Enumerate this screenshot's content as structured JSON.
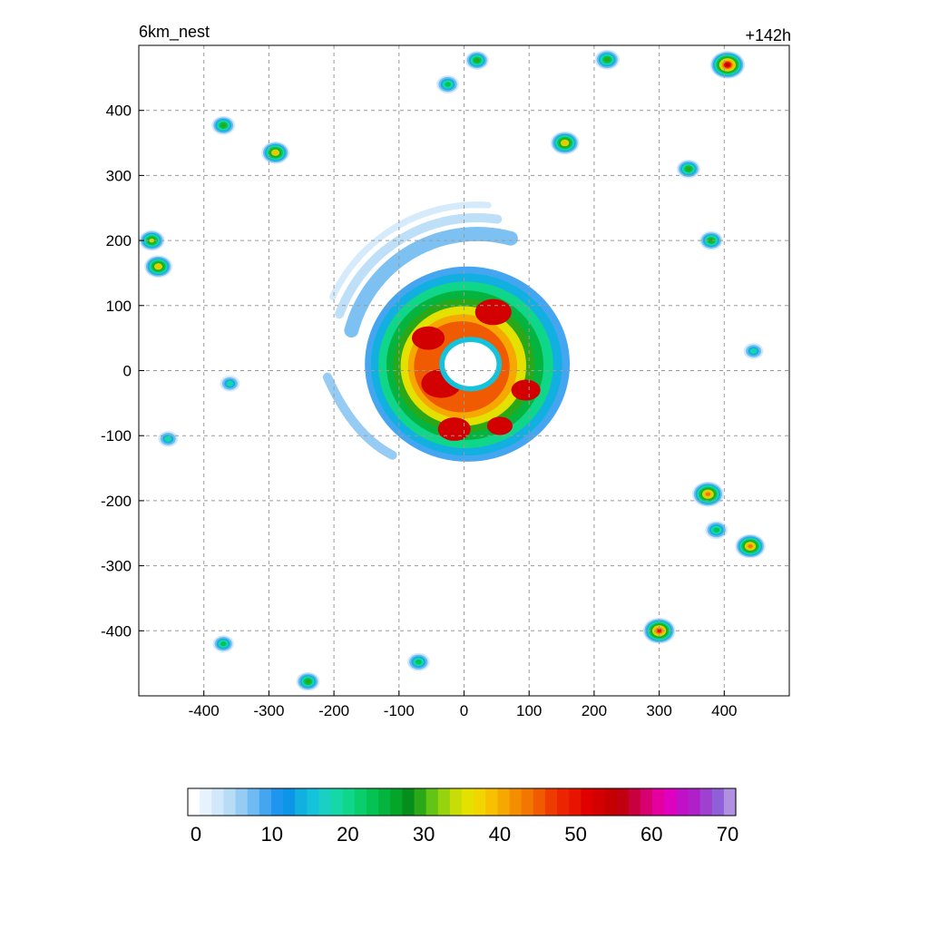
{
  "title_left": "6km_nest",
  "title_right": "+142h",
  "chart_data": {
    "type": "heatmap",
    "x_ticks": [
      -400,
      -300,
      -200,
      -100,
      0,
      100,
      200,
      300,
      400
    ],
    "y_ticks": [
      400,
      300,
      200,
      100,
      0,
      -100,
      -200,
      -300,
      -400
    ],
    "xlim": [
      -500,
      500
    ],
    "ylim": [
      -500,
      500
    ],
    "grid": true,
    "colorbar": {
      "min": 0,
      "max": 70,
      "tick_values": [
        0,
        10,
        20,
        30,
        40,
        50,
        60,
        70
      ],
      "colors": [
        "#ffffff",
        "#e6f2fc",
        "#d0e8f9",
        "#b6dcf6",
        "#96ccf3",
        "#6fbaf2",
        "#44a6f0",
        "#1e95ef",
        "#0d96e8",
        "#12b0e0",
        "#14c2dc",
        "#1ad0c4",
        "#16d8a6",
        "#10d68a",
        "#0acd6c",
        "#05c352",
        "#04b43e",
        "#05a52a",
        "#068e1c",
        "#2aa818",
        "#62c414",
        "#98d40e",
        "#c8dc08",
        "#e4e000",
        "#f2d400",
        "#f7c000",
        "#f7a800",
        "#f48e00",
        "#f27600",
        "#f05a00",
        "#ee3c00",
        "#ec2400",
        "#e81400",
        "#e00000",
        "#d20000",
        "#c40000",
        "#c00010",
        "#c80040",
        "#d80070",
        "#e400a0",
        "#e000c0",
        "#c010c8",
        "#b020c8",
        "#a040d0",
        "#9060d8",
        "#b090e0"
      ]
    },
    "features": [
      {
        "name": "main-storm",
        "x": 5,
        "y": 10,
        "peak": 52
      },
      {
        "name": "outer-band-north",
        "x": -110,
        "y": 200,
        "peak": 10
      },
      {
        "name": "cell-ne-top",
        "x": 405,
        "y": 470,
        "peak": 55
      },
      {
        "name": "cell-ne-2",
        "x": 220,
        "y": 478,
        "peak": 33
      },
      {
        "name": "cell-n-1",
        "x": 20,
        "y": 477,
        "peak": 30
      },
      {
        "name": "cell-n-2",
        "x": -25,
        "y": 440,
        "peak": 28
      },
      {
        "name": "cell-n-3",
        "x": 155,
        "y": 350,
        "peak": 42
      },
      {
        "name": "cell-nw-1",
        "x": -290,
        "y": 335,
        "peak": 40
      },
      {
        "name": "cell-nw-2",
        "x": -370,
        "y": 377,
        "peak": 30
      },
      {
        "name": "cell-w-1",
        "x": -480,
        "y": 200,
        "peak": 35
      },
      {
        "name": "cell-w-2",
        "x": -470,
        "y": 160,
        "peak": 40
      },
      {
        "name": "cell-w-3",
        "x": -360,
        "y": -20,
        "peak": 22
      },
      {
        "name": "cell-w-4",
        "x": -455,
        "y": -105,
        "peak": 22
      },
      {
        "name": "cell-e-1",
        "x": 380,
        "y": 200,
        "peak": 30
      },
      {
        "name": "cell-e-2",
        "x": 345,
        "y": 310,
        "peak": 30
      },
      {
        "name": "cell-e-3",
        "x": 445,
        "y": 30,
        "peak": 22
      },
      {
        "name": "cell-e-4",
        "x": 375,
        "y": -190,
        "peak": 48
      },
      {
        "name": "cell-e-5",
        "x": 440,
        "y": -270,
        "peak": 45
      },
      {
        "name": "cell-e-6",
        "x": 388,
        "y": -245,
        "peak": 28
      },
      {
        "name": "cell-se-1",
        "x": 300,
        "y": -400,
        "peak": 50
      },
      {
        "name": "cell-s-1",
        "x": -70,
        "y": -448,
        "peak": 28
      },
      {
        "name": "cell-s-2",
        "x": -240,
        "y": -478,
        "peak": 30
      },
      {
        "name": "cell-sw-1",
        "x": -370,
        "y": -420,
        "peak": 25
      }
    ]
  }
}
